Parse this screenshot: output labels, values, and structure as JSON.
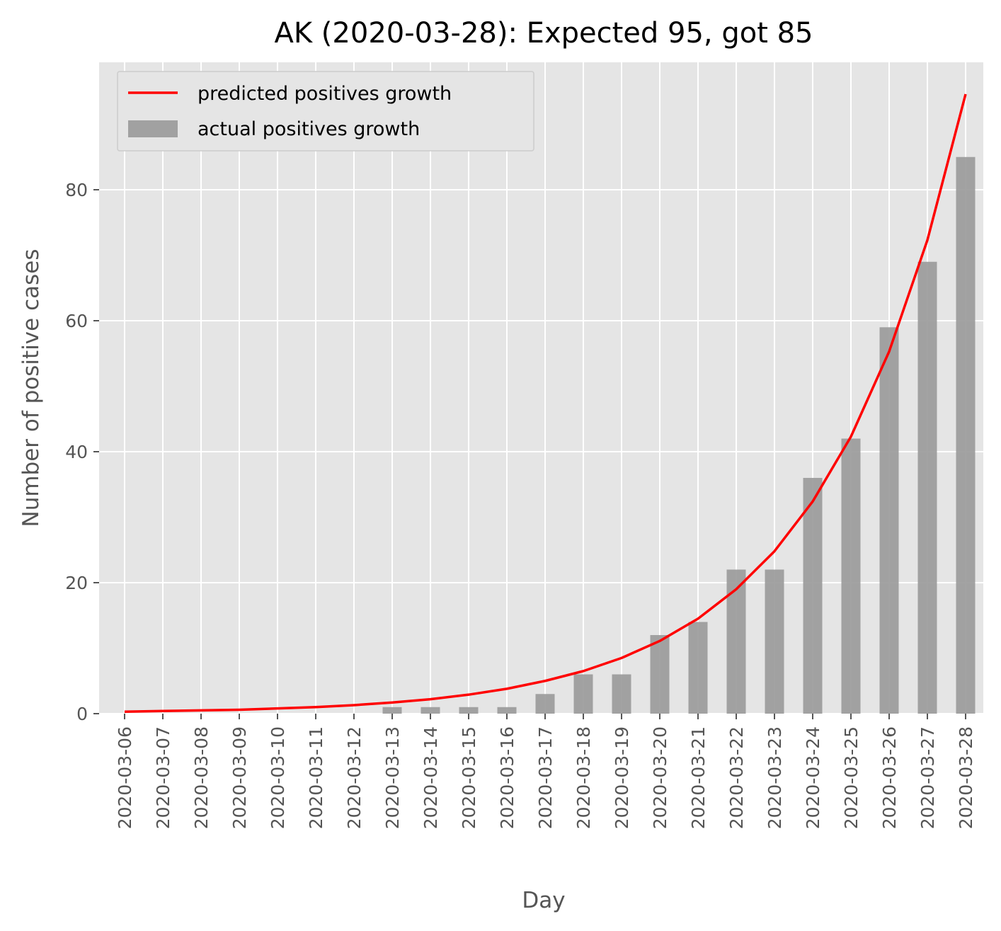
{
  "chart_data": {
    "type": "bar",
    "title": "AK (2020-03-28): Expected 95, got 85",
    "xlabel": "Day",
    "ylabel": "Number of positive cases",
    "categories": [
      "2020-03-06",
      "2020-03-07",
      "2020-03-08",
      "2020-03-09",
      "2020-03-10",
      "2020-03-11",
      "2020-03-12",
      "2020-03-13",
      "2020-03-14",
      "2020-03-15",
      "2020-03-16",
      "2020-03-17",
      "2020-03-18",
      "2020-03-19",
      "2020-03-20",
      "2020-03-21",
      "2020-03-22",
      "2020-03-23",
      "2020-03-24",
      "2020-03-25",
      "2020-03-26",
      "2020-03-27",
      "2020-03-28"
    ],
    "series": [
      {
        "name": "actual positives growth",
        "type": "bar",
        "color": "#999999",
        "values": [
          0,
          0,
          0,
          0,
          0,
          0,
          0,
          1,
          1,
          1,
          1,
          3,
          6,
          6,
          12,
          14,
          22,
          22,
          36,
          42,
          59,
          69,
          85
        ]
      },
      {
        "name": "predicted positives growth",
        "type": "line",
        "color": "#ff0000",
        "values": [
          0.3,
          0.4,
          0.5,
          0.6,
          0.8,
          1.0,
          1.3,
          1.7,
          2.2,
          2.9,
          3.8,
          5.0,
          6.5,
          8.5,
          11.1,
          14.5,
          19.0,
          24.8,
          32.4,
          42.3,
          55.3,
          72.3,
          94.6
        ]
      }
    ],
    "yticks": [
      0,
      20,
      40,
      60,
      80
    ],
    "ylim": [
      0,
      99.3
    ],
    "grid": true,
    "background": "#e5e5e5",
    "legend_position": "upper-left"
  }
}
